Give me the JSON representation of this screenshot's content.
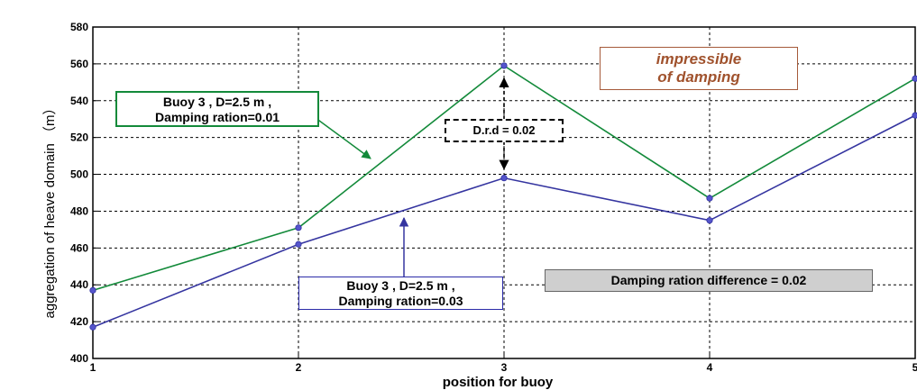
{
  "chart_data": {
    "type": "line",
    "x": [
      1,
      2,
      3,
      4,
      5
    ],
    "xlim": [
      1,
      5
    ],
    "ylim": [
      400,
      580
    ],
    "xticks": [
      "1",
      "2",
      "3",
      "4",
      "5"
    ],
    "yticks": [
      "400",
      "420",
      "440",
      "460",
      "480",
      "500",
      "520",
      "540",
      "560",
      "580"
    ],
    "xlabel": "position for  buoy",
    "ylabel": "aggregation of heave domain （m）",
    "grid": true,
    "series": [
      {
        "values": [
          437,
          471,
          559,
          487,
          552
        ],
        "color": "#138a3a"
      },
      {
        "values": [
          417,
          462,
          498,
          475,
          532
        ],
        "color": "#3535a0"
      }
    ],
    "annotations": {
      "title_box": {
        "line1": "impressible",
        "line2": "of damping",
        "color": "#a0522d"
      },
      "legend_green": {
        "line1": "Buoy 3 , D=2.5 m ,",
        "line2": "Damping ration=0.01"
      },
      "legend_blue": {
        "line1": "Buoy 3 , D=2.5 m ,",
        "line2": "Damping ration=0.03"
      },
      "drd": "D.r.d = 0.02",
      "difference": "Damping ration difference = 0.02"
    }
  }
}
